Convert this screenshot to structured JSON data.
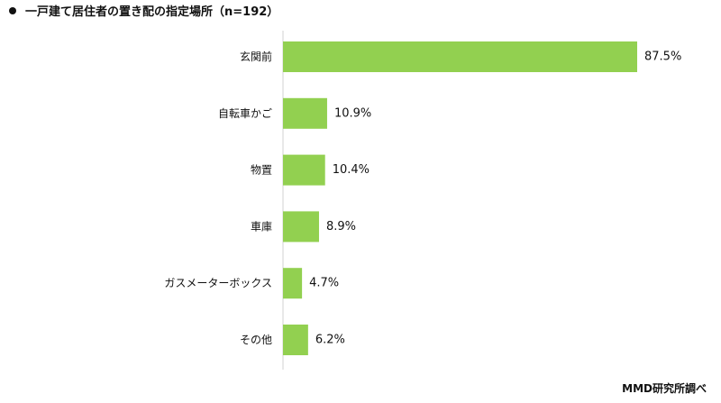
{
  "title": "一戸建て居住者の置き配の指定場所（n=192）",
  "source": "MMD研究所調べ",
  "colors": {
    "bar": "#92d050",
    "axis": "#d0d0d0",
    "text": "#111111"
  },
  "chart_data": {
    "type": "bar",
    "orientation": "horizontal",
    "title": "一戸建て居住者の置き配の指定場所（n=192）",
    "categories": [
      "玄関前",
      "自転車かご",
      "物置",
      "車庫",
      "ガスメーターボックス",
      "その他"
    ],
    "values": [
      87.5,
      10.9,
      10.4,
      8.9,
      4.7,
      6.2
    ],
    "value_labels": [
      "87.5%",
      "10.9%",
      "10.4%",
      "8.9%",
      "4.7%",
      "6.2%"
    ],
    "unit": "%",
    "xlim": [
      0,
      100
    ],
    "grid": false,
    "legend": "none"
  }
}
